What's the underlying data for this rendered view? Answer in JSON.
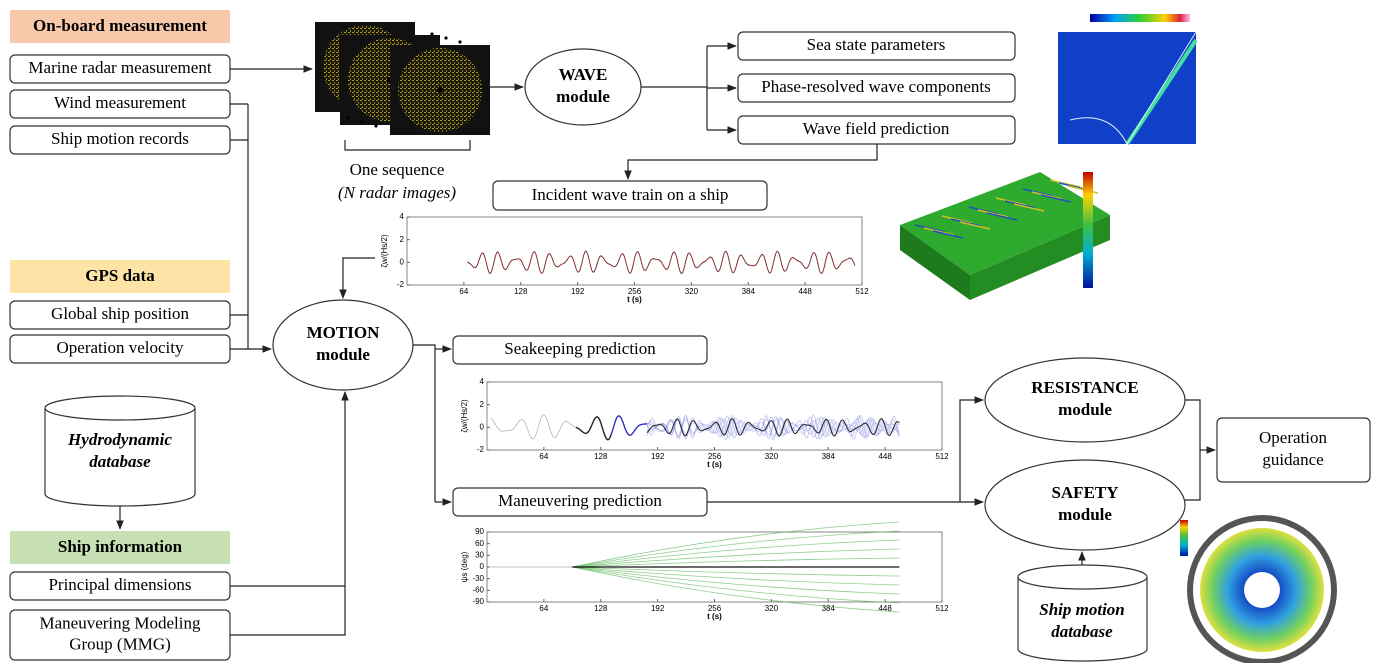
{
  "onboard": {
    "title": "On-board measurement",
    "items": [
      "Marine radar measurement",
      "Wind measurement",
      "Ship motion records"
    ]
  },
  "radar": {
    "caption": [
      "One sequence",
      "(N radar images)"
    ]
  },
  "wave_module": [
    "WAVE",
    "module"
  ],
  "wave_outputs": [
    "Sea state parameters",
    "Phase-resolved wave components",
    "Wave field prediction"
  ],
  "incident": "Incident wave train on a ship",
  "gps": {
    "title": "GPS data",
    "items": [
      "Global ship position",
      "Operation velocity"
    ]
  },
  "motion_module": [
    "MOTION",
    "module"
  ],
  "hydro_db": [
    "Hydrodynamic",
    "database"
  ],
  "ship_info": {
    "title": "Ship information",
    "items": [
      [
        "Principal dimensions"
      ],
      [
        "Maneuvering Modeling",
        "Group (MMG)"
      ]
    ]
  },
  "predictions": [
    "Seakeeping prediction",
    "Maneuvering prediction"
  ],
  "resistance_module": [
    "RESISTANCE",
    "module"
  ],
  "safety_module": [
    "SAFETY",
    "module"
  ],
  "guidance": [
    "Operation",
    "guidance"
  ],
  "motion_db": [
    "Ship motion",
    "database"
  ],
  "plots": [
    {
      "xticks": [
        64,
        128,
        192,
        256,
        320,
        384,
        448,
        512
      ],
      "yticks": [
        -2,
        0,
        2,
        4
      ],
      "xlabel": "t (s)",
      "ylabel": "ζw/(Hs/2)"
    },
    {
      "xticks": [
        64,
        128,
        192,
        256,
        320,
        384,
        448,
        512
      ],
      "yticks": [
        -2,
        0,
        2,
        4
      ],
      "xlabel": "t (s)",
      "ylabel": "ζw/(Hs/2)"
    },
    {
      "xticks": [
        64,
        128,
        192,
        256,
        320,
        384,
        448,
        512
      ],
      "yticks": [
        -90,
        -60,
        -30,
        0,
        30,
        60,
        90
      ],
      "xlabel": "t (s)",
      "ylabel": "ψs (deg)"
    }
  ]
}
